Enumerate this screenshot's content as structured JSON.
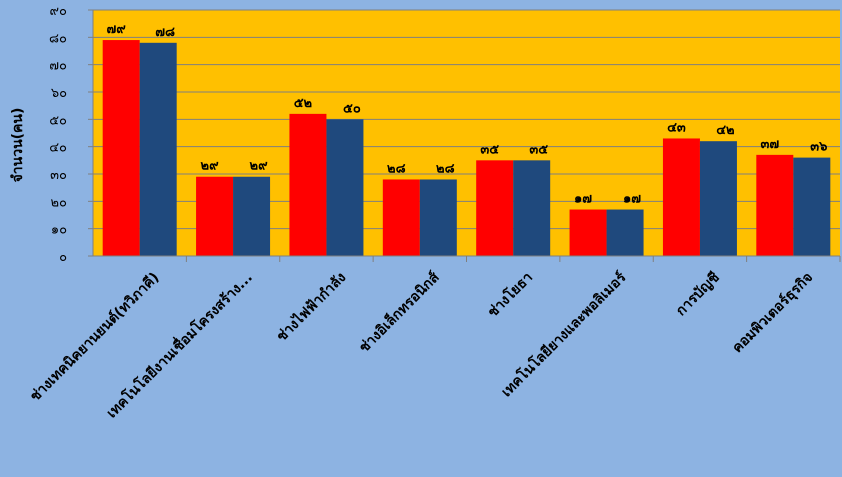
{
  "chart_data": {
    "type": "bar",
    "title": "",
    "xlabel": "",
    "ylabel": "จำนวน(คน)",
    "ylim": [
      0,
      90
    ],
    "y_ticks": [
      "๐",
      "๑๐",
      "๒๐",
      "๓๐",
      "๔๐",
      "๕๐",
      "๖๐",
      "๗๐",
      "๘๐",
      "๙๐"
    ],
    "grid": true,
    "legend": "none",
    "categories": [
      "ช่างเทคนิคยานยนต์(ทวิภาคี)",
      "เทคโนโลยีงานเชื่อมโครงสร้าง...",
      "ช่างไฟฟ้ากำลัง",
      "ช่างอิเล็กทรอนิกส์",
      "ช่างโยธา",
      "เทคโนโลยียางและพอลิเมอร์",
      "การบัญชี",
      "คอมพิวเตอร์ธุรกิจ"
    ],
    "series": [
      {
        "color": "#ff0000",
        "values": [
          79,
          29,
          52,
          28,
          35,
          17,
          43,
          37
        ],
        "labels": [
          "๗๙",
          "๒๙",
          "๕๒",
          "๒๘",
          "๓๕",
          "๑๗",
          "๔๓",
          "๓๗"
        ]
      },
      {
        "color": "#1f497d",
        "values": [
          78,
          29,
          50,
          28,
          35,
          17,
          42,
          36
        ],
        "labels": [
          "๗๘",
          "๒๙",
          "๕๐",
          "๒๘",
          "๓๕",
          "๑๗",
          "๔๒",
          "๓๖"
        ]
      }
    ],
    "colors": {
      "background": "#8db3e2",
      "plot_area": "#ffc000",
      "gridline": "#7f7f7f"
    }
  }
}
